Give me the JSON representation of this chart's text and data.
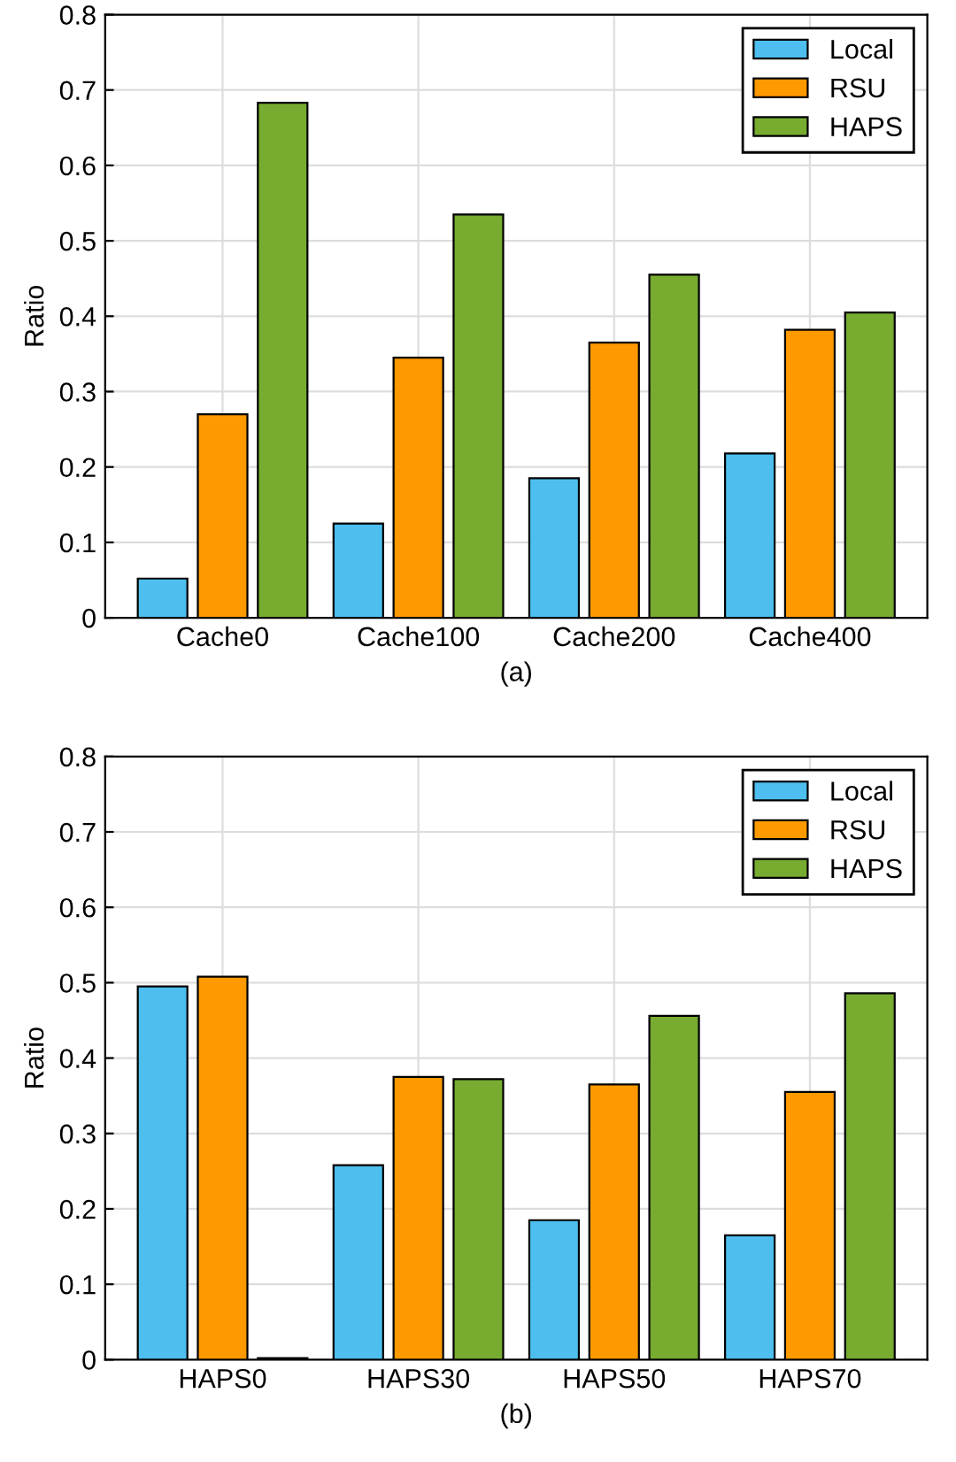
{
  "chart_data": [
    {
      "type": "bar",
      "xlabel": "(a)",
      "ylabel": "Ratio",
      "categories": [
        "Cache0",
        "Cache100",
        "Cache200",
        "Cache400"
      ],
      "series": [
        {
          "name": "Local",
          "color": "#4dbeee",
          "values": [
            0.052,
            0.125,
            0.185,
            0.218
          ]
        },
        {
          "name": "RSU",
          "color": "#ff9900",
          "values": [
            0.27,
            0.345,
            0.365,
            0.382
          ]
        },
        {
          "name": "HAPS",
          "color": "#77ac30",
          "values": [
            0.683,
            0.535,
            0.455,
            0.405
          ]
        }
      ],
      "ylim": [
        0,
        0.8
      ],
      "yticks": [
        0,
        0.1,
        0.2,
        0.3,
        0.4,
        0.5,
        0.6,
        0.7,
        0.8
      ],
      "grid": true,
      "legend": "top right"
    },
    {
      "type": "bar",
      "xlabel": "(b)",
      "ylabel": "Ratio",
      "categories": [
        "HAPS0",
        "HAPS30",
        "HAPS50",
        "HAPS70"
      ],
      "series": [
        {
          "name": "Local",
          "color": "#4dbeee",
          "values": [
            0.495,
            0.258,
            0.185,
            0.165
          ]
        },
        {
          "name": "RSU",
          "color": "#ff9900",
          "values": [
            0.508,
            0.375,
            0.365,
            0.355
          ]
        },
        {
          "name": "HAPS",
          "color": "#77ac30",
          "values": [
            0.002,
            0.372,
            0.456,
            0.486
          ]
        }
      ],
      "ylim": [
        0,
        0.8
      ],
      "yticks": [
        0,
        0.1,
        0.2,
        0.3,
        0.4,
        0.5,
        0.6,
        0.7,
        0.8
      ],
      "grid": true,
      "legend": "top right"
    }
  ]
}
